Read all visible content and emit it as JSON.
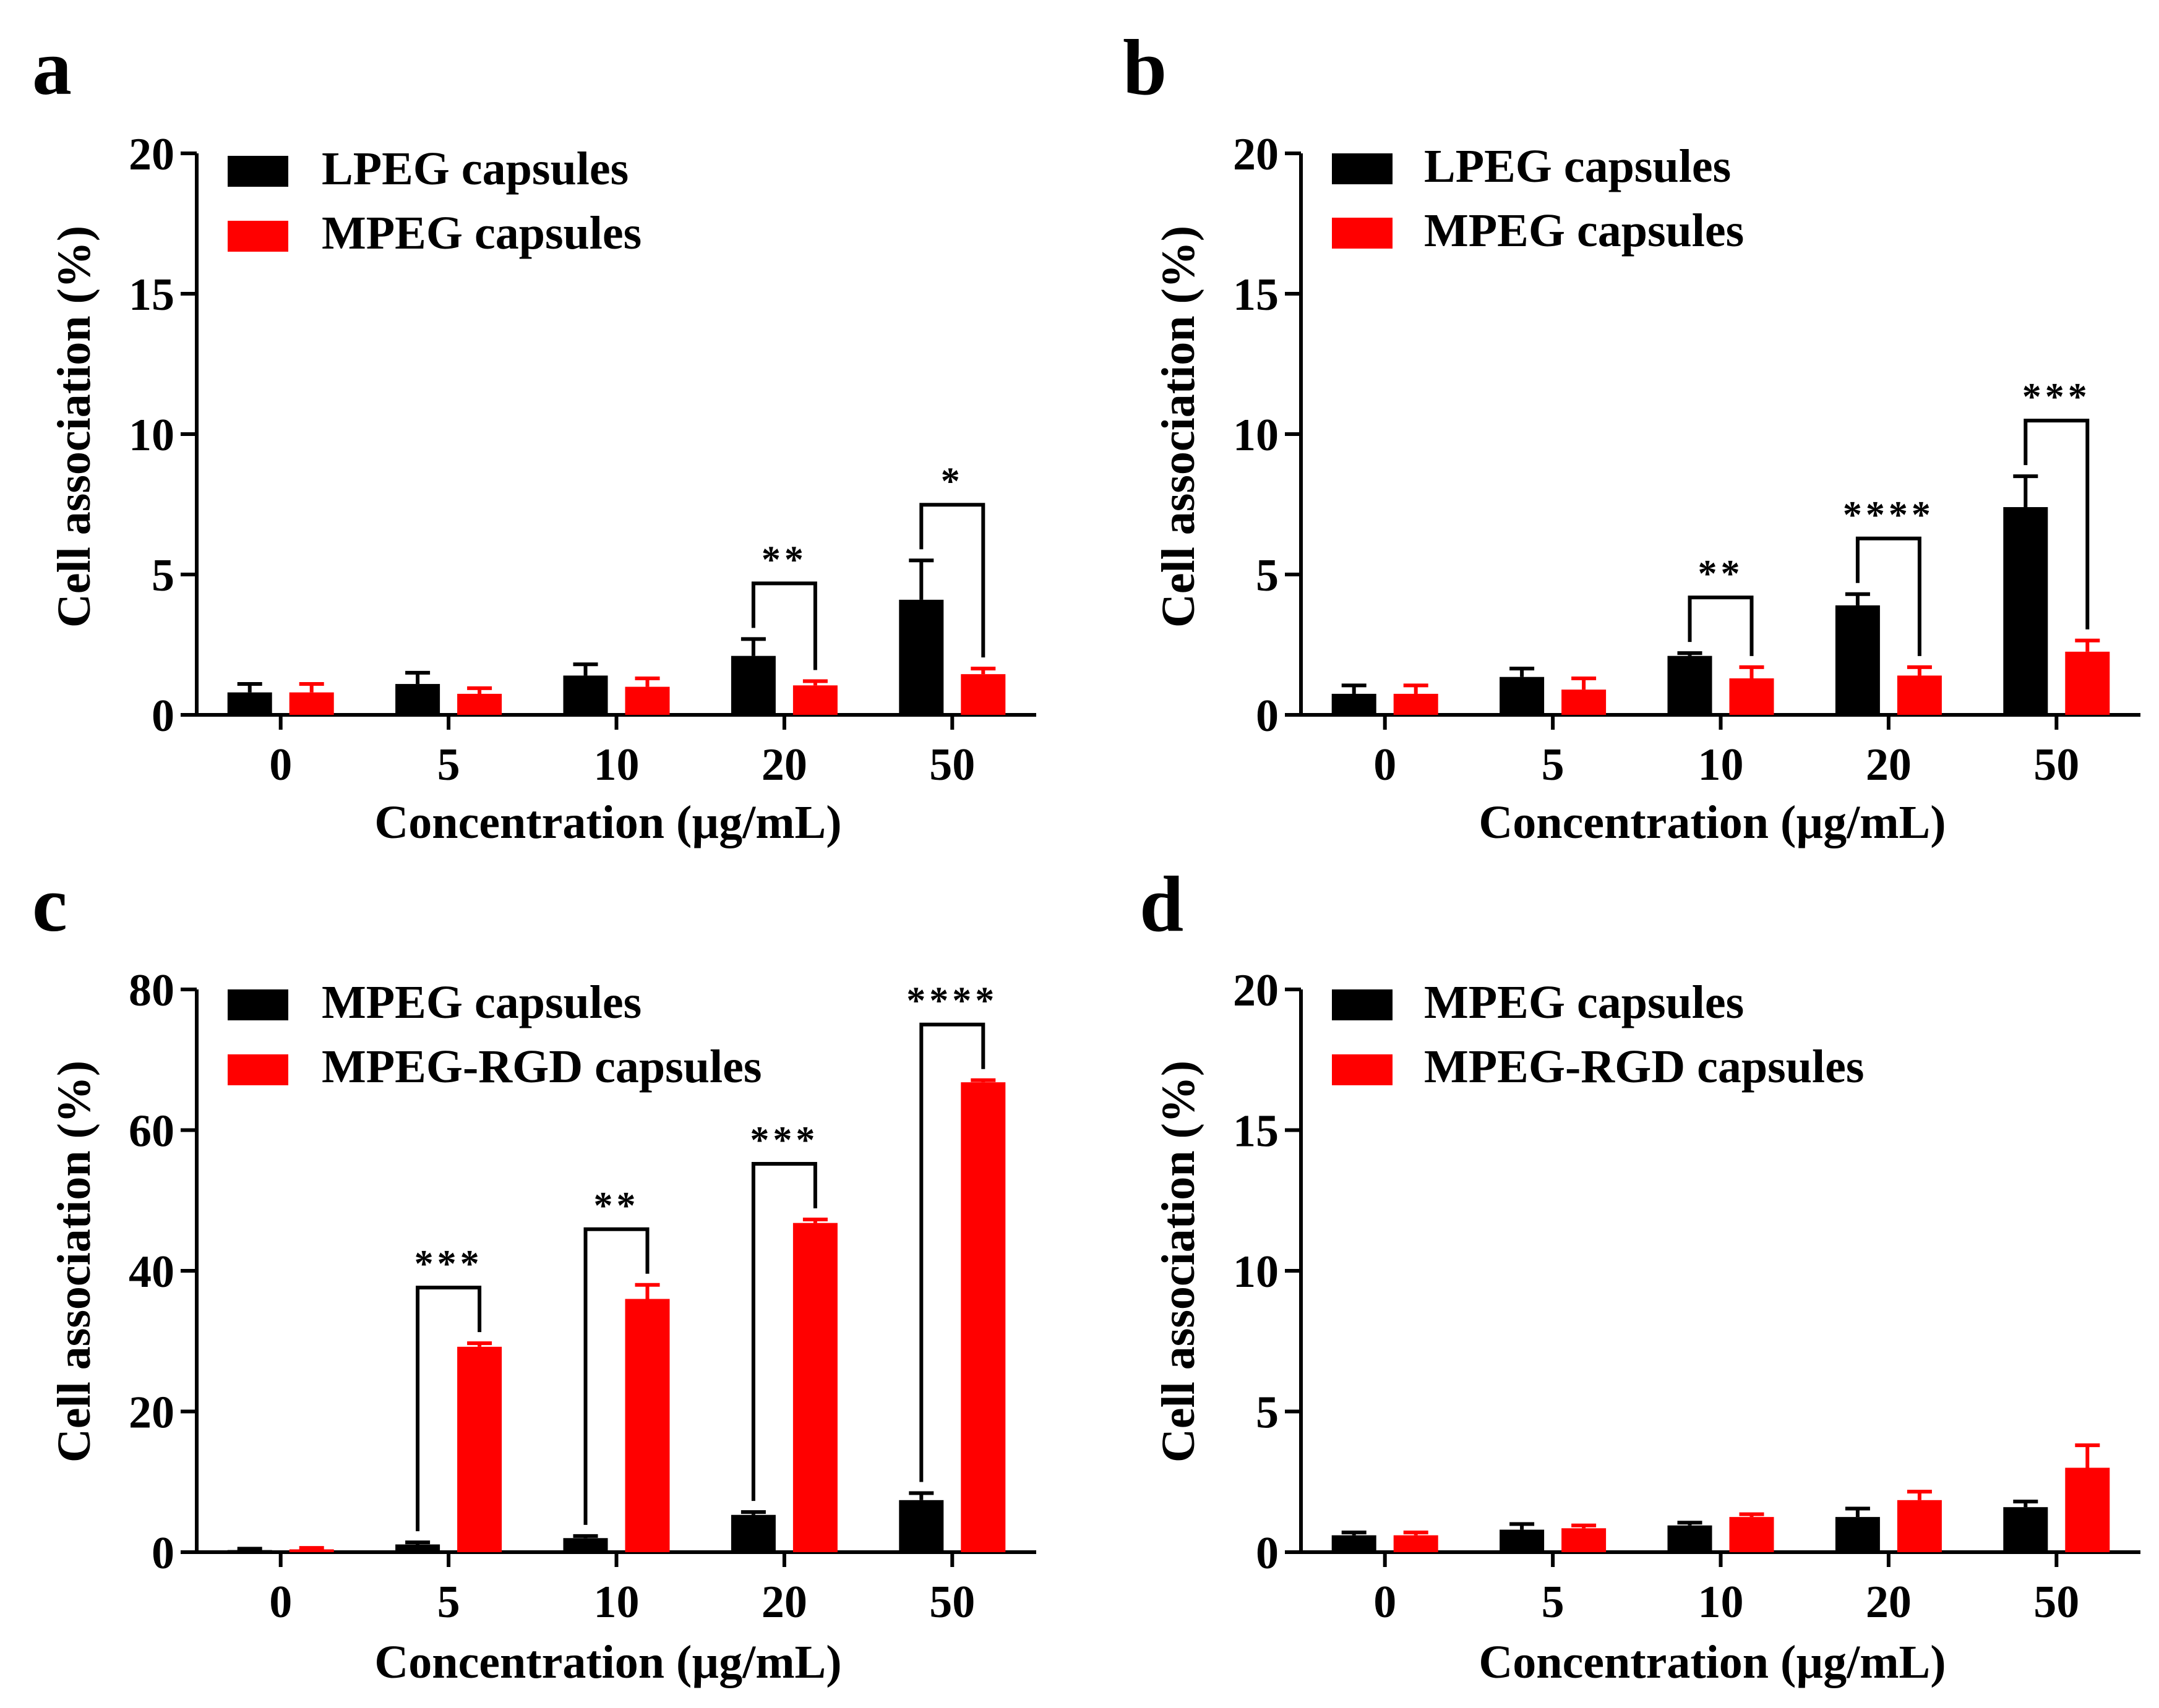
{
  "chart_data": [
    {
      "panel_label": "a",
      "type": "bar",
      "xlabel": "Concentration (µg/mL)",
      "ylabel": "Cell association (%)",
      "categories": [
        "0",
        "5",
        "10",
        "20",
        "50"
      ],
      "ylim": [
        0,
        20
      ],
      "yticks": [
        0,
        5,
        10,
        15,
        20
      ],
      "legend_position": "top-left",
      "series": [
        {
          "name": "LPEG capsules",
          "color": "#000000",
          "values": [
            0.8,
            1.1,
            1.4,
            2.1,
            4.1
          ],
          "errors": [
            0.3,
            0.4,
            0.4,
            0.6,
            1.4
          ]
        },
        {
          "name": "MPEG capsules",
          "color": "#ff0000",
          "values": [
            0.8,
            0.75,
            1.0,
            1.05,
            1.45
          ],
          "errors": [
            0.3,
            0.2,
            0.3,
            0.15,
            0.2
          ]
        }
      ],
      "significance": [
        {
          "category_index": 3,
          "label": "**"
        },
        {
          "category_index": 4,
          "label": "*"
        }
      ]
    },
    {
      "panel_label": "b",
      "type": "bar",
      "xlabel": "Concentration (µg/mL)",
      "ylabel": "Cell association (%)",
      "categories": [
        "0",
        "5",
        "10",
        "20",
        "50"
      ],
      "ylim": [
        0,
        20
      ],
      "yticks": [
        0,
        5,
        10,
        15,
        20
      ],
      "legend_position": "top-left",
      "series": [
        {
          "name": "LPEG capsules",
          "color": "#000000",
          "values": [
            0.75,
            1.35,
            2.1,
            3.9,
            7.4
          ],
          "errors": [
            0.3,
            0.3,
            0.1,
            0.4,
            1.1
          ]
        },
        {
          "name": "MPEG capsules",
          "color": "#ff0000",
          "values": [
            0.75,
            0.9,
            1.3,
            1.4,
            2.25
          ],
          "errors": [
            0.3,
            0.4,
            0.4,
            0.3,
            0.4
          ]
        }
      ],
      "significance": [
        {
          "category_index": 2,
          "label": "**"
        },
        {
          "category_index": 3,
          "label": "****"
        },
        {
          "category_index": 4,
          "label": "***"
        }
      ]
    },
    {
      "panel_label": "c",
      "type": "bar",
      "xlabel": "Concentration (µg/mL)",
      "ylabel": "Cell association (%)",
      "categories": [
        "0",
        "5",
        "10",
        "20",
        "50"
      ],
      "ylim": [
        0,
        80
      ],
      "yticks": [
        0,
        20,
        40,
        60,
        80
      ],
      "legend_position": "top-left",
      "series": [
        {
          "name": "MPEG capsules",
          "color": "#000000",
          "values": [
            0.3,
            1.1,
            2.0,
            5.3,
            7.4
          ],
          "errors": [
            0.2,
            0.3,
            0.3,
            0.4,
            1.0
          ]
        },
        {
          "name": "MPEG-RGD capsules",
          "color": "#ff0000",
          "values": [
            0.4,
            29.2,
            36.0,
            46.8,
            66.8
          ],
          "errors": [
            0.2,
            0.5,
            2.0,
            0.5,
            0.3
          ]
        }
      ],
      "significance": [
        {
          "category_index": 1,
          "label": "***"
        },
        {
          "category_index": 2,
          "label": "**"
        },
        {
          "category_index": 3,
          "label": "***"
        },
        {
          "category_index": 4,
          "label": "****"
        }
      ]
    },
    {
      "panel_label": "d",
      "type": "bar",
      "xlabel": "Concentration (µg/mL)",
      "ylabel": "Cell association (%)",
      "categories": [
        "0",
        "5",
        "10",
        "20",
        "50"
      ],
      "ylim": [
        0,
        20
      ],
      "yticks": [
        0,
        5,
        10,
        15,
        20
      ],
      "legend_position": "top-left",
      "series": [
        {
          "name": "MPEG capsules",
          "color": "#000000",
          "values": [
            0.6,
            0.8,
            0.95,
            1.25,
            1.6
          ],
          "errors": [
            0.1,
            0.2,
            0.1,
            0.3,
            0.2
          ]
        },
        {
          "name": "MPEG-RGD capsules",
          "color": "#ff0000",
          "values": [
            0.6,
            0.85,
            1.25,
            1.85,
            3.0
          ],
          "errors": [
            0.1,
            0.1,
            0.1,
            0.3,
            0.8
          ]
        }
      ],
      "significance": []
    }
  ]
}
